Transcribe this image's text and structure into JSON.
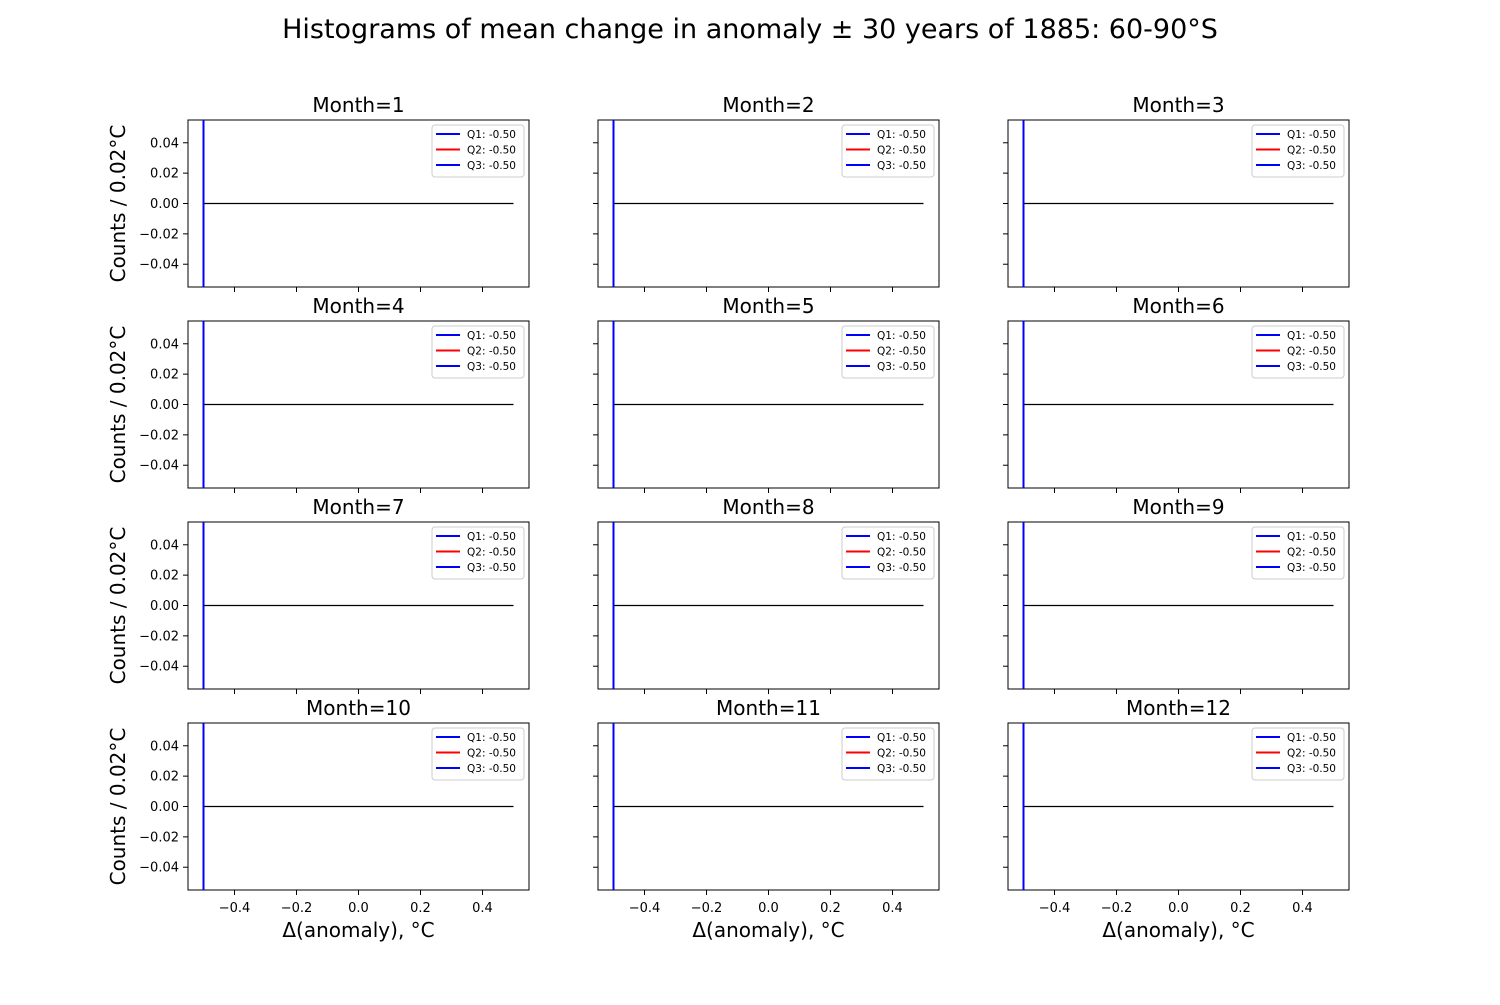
{
  "figure": {
    "title": "Histograms of mean change in anomaly ± 30 years of 1885: 60-90°S"
  },
  "colors": {
    "q1": "#0000ff",
    "q2": "#ff0000",
    "q3": "#0000ff",
    "histogram": "#000000",
    "axes": "#000000"
  },
  "chart_data": {
    "type": "line",
    "layout": "4 rows x 3 columns of subplots, shared x and y axes",
    "xlabel": "Δ(anomaly), °C",
    "ylabel": "Counts / 0.02°C",
    "xlim": [
      -0.55,
      0.55
    ],
    "ylim": [
      -0.055,
      0.055
    ],
    "xticks": [
      -0.4,
      -0.2,
      0.0,
      0.2,
      0.4
    ],
    "xtick_labels": [
      "−0.4",
      "−0.2",
      "0.0",
      "0.2",
      "0.4"
    ],
    "yticks": [
      0.04,
      0.02,
      0.0,
      -0.02,
      -0.04
    ],
    "ytick_labels": [
      "0.04",
      "0.02",
      "0.00",
      "−0.02",
      "−0.04"
    ],
    "grid": false,
    "legend_position": "upper right",
    "panels": [
      {
        "title": "Month=1",
        "histogram": {
          "x": [
            -0.5,
            0.5
          ],
          "y": [
            0,
            0
          ]
        },
        "quartiles": [
          {
            "label": "Q1: -0.50",
            "value": -0.5
          },
          {
            "label": "Q2: -0.50",
            "value": -0.5
          },
          {
            "label": "Q3: -0.50",
            "value": -0.5
          }
        ]
      },
      {
        "title": "Month=2",
        "histogram": {
          "x": [
            -0.5,
            0.5
          ],
          "y": [
            0,
            0
          ]
        },
        "quartiles": [
          {
            "label": "Q1: -0.50",
            "value": -0.5
          },
          {
            "label": "Q2: -0.50",
            "value": -0.5
          },
          {
            "label": "Q3: -0.50",
            "value": -0.5
          }
        ]
      },
      {
        "title": "Month=3",
        "histogram": {
          "x": [
            -0.5,
            0.5
          ],
          "y": [
            0,
            0
          ]
        },
        "quartiles": [
          {
            "label": "Q1: -0.50",
            "value": -0.5
          },
          {
            "label": "Q2: -0.50",
            "value": -0.5
          },
          {
            "label": "Q3: -0.50",
            "value": -0.5
          }
        ]
      },
      {
        "title": "Month=4",
        "histogram": {
          "x": [
            -0.5,
            0.5
          ],
          "y": [
            0,
            0
          ]
        },
        "quartiles": [
          {
            "label": "Q1: -0.50",
            "value": -0.5
          },
          {
            "label": "Q2: -0.50",
            "value": -0.5
          },
          {
            "label": "Q3: -0.50",
            "value": -0.5
          }
        ]
      },
      {
        "title": "Month=5",
        "histogram": {
          "x": [
            -0.5,
            0.5
          ],
          "y": [
            0,
            0
          ]
        },
        "quartiles": [
          {
            "label": "Q1: -0.50",
            "value": -0.5
          },
          {
            "label": "Q2: -0.50",
            "value": -0.5
          },
          {
            "label": "Q3: -0.50",
            "value": -0.5
          }
        ]
      },
      {
        "title": "Month=6",
        "histogram": {
          "x": [
            -0.5,
            0.5
          ],
          "y": [
            0,
            0
          ]
        },
        "quartiles": [
          {
            "label": "Q1: -0.50",
            "value": -0.5
          },
          {
            "label": "Q2: -0.50",
            "value": -0.5
          },
          {
            "label": "Q3: -0.50",
            "value": -0.5
          }
        ]
      },
      {
        "title": "Month=7",
        "histogram": {
          "x": [
            -0.5,
            0.5
          ],
          "y": [
            0,
            0
          ]
        },
        "quartiles": [
          {
            "label": "Q1: -0.50",
            "value": -0.5
          },
          {
            "label": "Q2: -0.50",
            "value": -0.5
          },
          {
            "label": "Q3: -0.50",
            "value": -0.5
          }
        ]
      },
      {
        "title": "Month=8",
        "histogram": {
          "x": [
            -0.5,
            0.5
          ],
          "y": [
            0,
            0
          ]
        },
        "quartiles": [
          {
            "label": "Q1: -0.50",
            "value": -0.5
          },
          {
            "label": "Q2: -0.50",
            "value": -0.5
          },
          {
            "label": "Q3: -0.50",
            "value": -0.5
          }
        ]
      },
      {
        "title": "Month=9",
        "histogram": {
          "x": [
            -0.5,
            0.5
          ],
          "y": [
            0,
            0
          ]
        },
        "quartiles": [
          {
            "label": "Q1: -0.50",
            "value": -0.5
          },
          {
            "label": "Q2: -0.50",
            "value": -0.5
          },
          {
            "label": "Q3: -0.50",
            "value": -0.5
          }
        ]
      },
      {
        "title": "Month=10",
        "histogram": {
          "x": [
            -0.5,
            0.5
          ],
          "y": [
            0,
            0
          ]
        },
        "quartiles": [
          {
            "label": "Q1: -0.50",
            "value": -0.5
          },
          {
            "label": "Q2: -0.50",
            "value": -0.5
          },
          {
            "label": "Q3: -0.50",
            "value": -0.5
          }
        ]
      },
      {
        "title": "Month=11",
        "histogram": {
          "x": [
            -0.5,
            0.5
          ],
          "y": [
            0,
            0
          ]
        },
        "quartiles": [
          {
            "label": "Q1: -0.50",
            "value": -0.5
          },
          {
            "label": "Q2: -0.50",
            "value": -0.5
          },
          {
            "label": "Q3: -0.50",
            "value": -0.5
          }
        ]
      },
      {
        "title": "Month=12",
        "histogram": {
          "x": [
            -0.5,
            0.5
          ],
          "y": [
            0,
            0
          ]
        },
        "quartiles": [
          {
            "label": "Q1: -0.50",
            "value": -0.5
          },
          {
            "label": "Q2: -0.50",
            "value": -0.5
          },
          {
            "label": "Q3: -0.50",
            "value": -0.5
          }
        ]
      }
    ]
  }
}
